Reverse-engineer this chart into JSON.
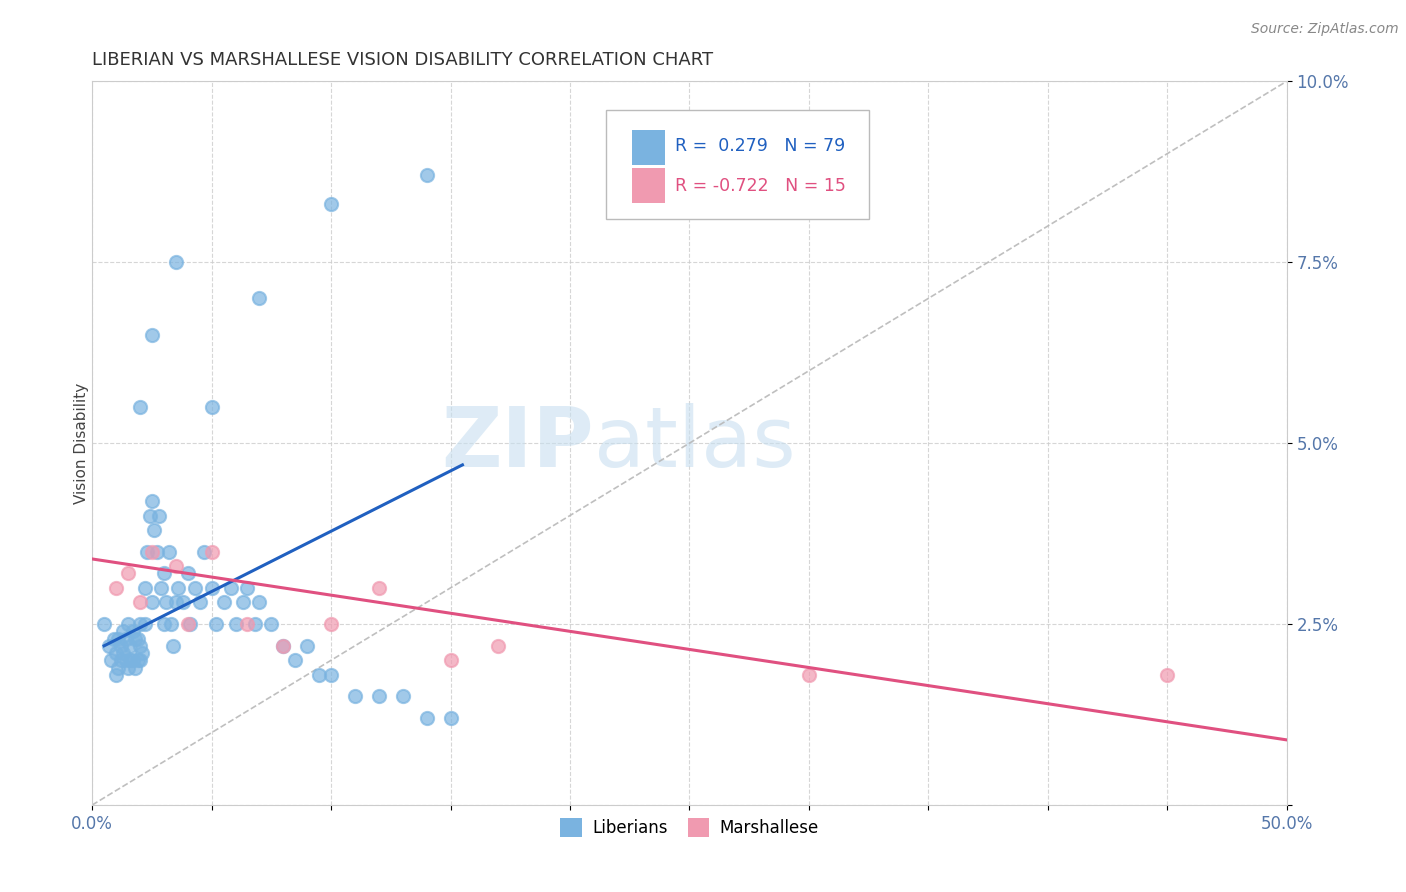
{
  "title": "LIBERIAN VS MARSHALLESE VISION DISABILITY CORRELATION CHART",
  "source": "Source: ZipAtlas.com",
  "ylabel": "Vision Disability",
  "xlim": [
    0.0,
    0.5
  ],
  "ylim": [
    0.0,
    0.1
  ],
  "liberian_color": "#7ab3e0",
  "marshallese_color": "#f09ab0",
  "liberian_R": 0.279,
  "liberian_N": 79,
  "marshallese_R": -0.722,
  "marshallese_N": 15,
  "liberian_line_color": "#2060c0",
  "marshallese_line_color": "#e05080",
  "diagonal_color": "#b8b8b8",
  "lib_line_x0": 0.005,
  "lib_line_x1": 0.155,
  "lib_line_y0": 0.022,
  "lib_line_y1": 0.047,
  "marsh_line_x0": 0.0,
  "marsh_line_x1": 0.5,
  "marsh_line_y0": 0.034,
  "marsh_line_y1": 0.009,
  "liberian_x": [
    0.005,
    0.007,
    0.008,
    0.009,
    0.01,
    0.01,
    0.011,
    0.011,
    0.012,
    0.012,
    0.013,
    0.013,
    0.014,
    0.014,
    0.015,
    0.015,
    0.016,
    0.016,
    0.017,
    0.017,
    0.018,
    0.018,
    0.019,
    0.019,
    0.02,
    0.02,
    0.02,
    0.021,
    0.022,
    0.022,
    0.023,
    0.024,
    0.025,
    0.025,
    0.026,
    0.027,
    0.028,
    0.029,
    0.03,
    0.03,
    0.031,
    0.032,
    0.033,
    0.034,
    0.035,
    0.036,
    0.038,
    0.04,
    0.041,
    0.043,
    0.045,
    0.047,
    0.05,
    0.052,
    0.055,
    0.058,
    0.06,
    0.063,
    0.065,
    0.068,
    0.07,
    0.075,
    0.08,
    0.085,
    0.09,
    0.095,
    0.1,
    0.11,
    0.12,
    0.13,
    0.14,
    0.15,
    0.02,
    0.025,
    0.035,
    0.05,
    0.07,
    0.1,
    0.14
  ],
  "liberian_y": [
    0.025,
    0.022,
    0.02,
    0.023,
    0.018,
    0.021,
    0.019,
    0.023,
    0.02,
    0.022,
    0.021,
    0.024,
    0.02,
    0.023,
    0.019,
    0.025,
    0.02,
    0.022,
    0.02,
    0.024,
    0.023,
    0.019,
    0.023,
    0.02,
    0.02,
    0.022,
    0.025,
    0.021,
    0.03,
    0.025,
    0.035,
    0.04,
    0.042,
    0.028,
    0.038,
    0.035,
    0.04,
    0.03,
    0.025,
    0.032,
    0.028,
    0.035,
    0.025,
    0.022,
    0.028,
    0.03,
    0.028,
    0.032,
    0.025,
    0.03,
    0.028,
    0.035,
    0.03,
    0.025,
    0.028,
    0.03,
    0.025,
    0.028,
    0.03,
    0.025,
    0.028,
    0.025,
    0.022,
    0.02,
    0.022,
    0.018,
    0.018,
    0.015,
    0.015,
    0.015,
    0.012,
    0.012,
    0.055,
    0.065,
    0.075,
    0.055,
    0.07,
    0.083,
    0.087
  ],
  "marshallese_x": [
    0.01,
    0.015,
    0.02,
    0.025,
    0.035,
    0.04,
    0.05,
    0.065,
    0.08,
    0.1,
    0.12,
    0.15,
    0.17,
    0.3,
    0.45
  ],
  "marshallese_y": [
    0.03,
    0.032,
    0.028,
    0.035,
    0.033,
    0.025,
    0.035,
    0.025,
    0.022,
    0.025,
    0.03,
    0.02,
    0.022,
    0.018,
    0.018
  ]
}
